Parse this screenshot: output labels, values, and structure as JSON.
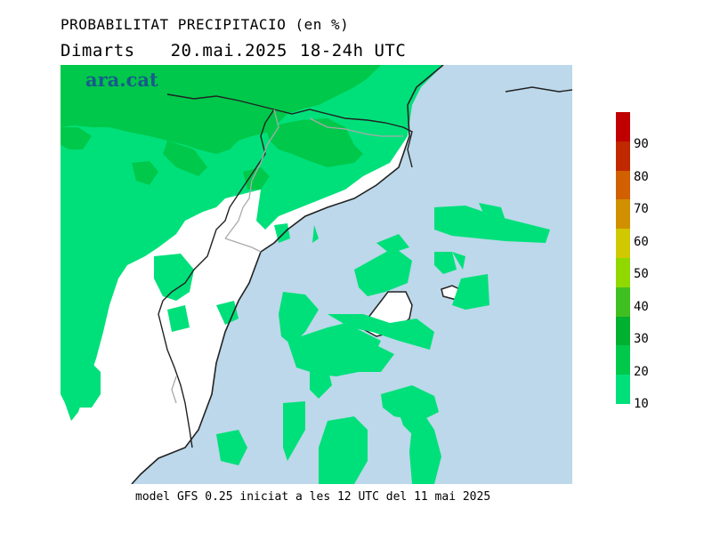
{
  "title": "PROBABILITAT PRECIPITACIO (en %)",
  "subtitle": {
    "day": "Dimarts",
    "date": "20.mai.2025",
    "period": "18-24h UTC"
  },
  "logo": "ara.cat",
  "footer": "model GFS 0.25 iniciat a les 12 UTC del 11 mai 2025",
  "legend": {
    "labels": [
      "10",
      "20",
      "30",
      "40",
      "50",
      "60",
      "70",
      "80",
      "90"
    ],
    "colors": [
      "#00e07a",
      "#00c84a",
      "#00b030",
      "#40c020",
      "#90d800",
      "#d0c800",
      "#d09000",
      "#d06000",
      "#c02800",
      "#c00000"
    ]
  },
  "colors": {
    "sea": "#bcd8ea",
    "land": "#ffffff",
    "p10": "#00e07a",
    "p20": "#00c84a",
    "border": "#222222",
    "province_border": "#aaaaaa"
  }
}
